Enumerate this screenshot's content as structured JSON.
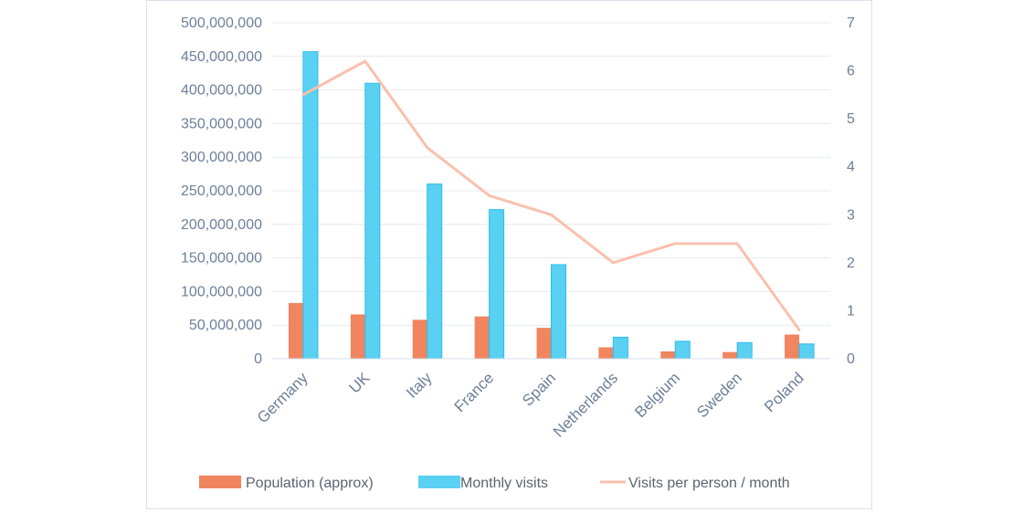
{
  "chart_data": {
    "type": "bar",
    "categories": [
      "Germany",
      "UK",
      "Italy",
      "France",
      "Spain",
      "Netherlands",
      "Belgium",
      "Sweden",
      "Poland"
    ],
    "series": [
      {
        "name": "Population (approx)",
        "kind": "bar",
        "axis": "left",
        "color": "#f0855f",
        "values": [
          83000000,
          66000000,
          58000000,
          63000000,
          46000000,
          17000000,
          11000000,
          10000000,
          36000000
        ]
      },
      {
        "name": "Monthly visits",
        "kind": "bar",
        "axis": "left",
        "color": "#5ad0f2",
        "values": [
          457000000,
          410000000,
          260000000,
          222000000,
          140000000,
          32000000,
          26000000,
          24000000,
          22000000
        ]
      },
      {
        "name": "Visits per person / month",
        "kind": "line",
        "axis": "right",
        "color": "#f9c0ad",
        "values": [
          5.5,
          6.2,
          4.4,
          3.4,
          3.0,
          2.0,
          2.4,
          2.4,
          0.6
        ]
      }
    ],
    "y_left": {
      "min": 0,
      "max": 500000000,
      "step": 50000000,
      "tick_labels": [
        "0",
        "50,000,000",
        "100,000,000",
        "150,000,000",
        "200,000,000",
        "250,000,000",
        "300,000,000",
        "350,000,000",
        "400,000,000",
        "450,000,000",
        "500,000,000"
      ]
    },
    "y_right": {
      "min": 0,
      "max": 7,
      "step": 1,
      "tick_labels": [
        "0",
        "1",
        "2",
        "3",
        "4",
        "5",
        "6",
        "7"
      ]
    },
    "grid": true,
    "legend_position": "bottom",
    "title": "",
    "xlabel": "",
    "ylabel": ""
  }
}
